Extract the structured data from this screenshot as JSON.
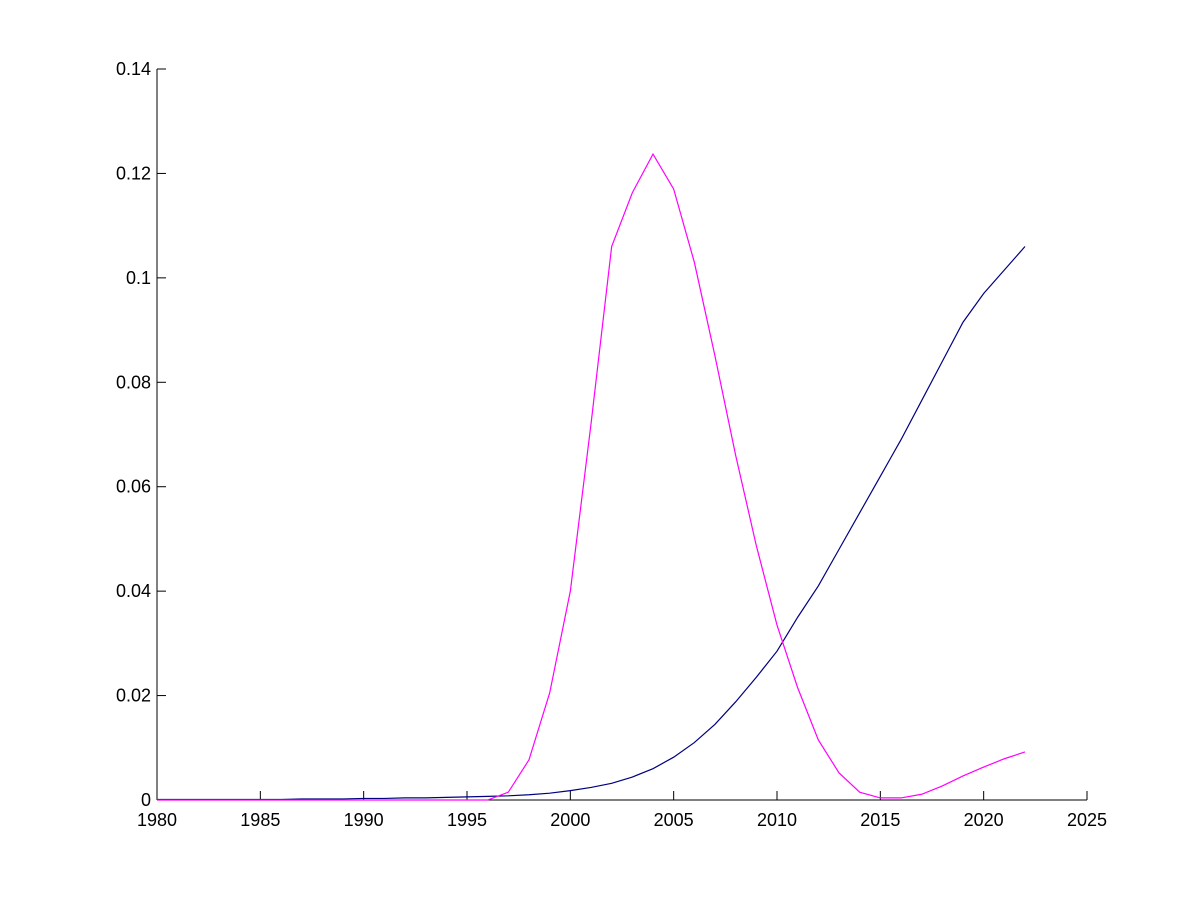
{
  "chart_data": {
    "type": "line",
    "x": [
      1980,
      1981,
      1982,
      1983,
      1984,
      1985,
      1986,
      1987,
      1988,
      1989,
      1990,
      1991,
      1992,
      1993,
      1994,
      1995,
      1996,
      1997,
      1998,
      1999,
      2000,
      2001,
      2002,
      2003,
      2004,
      2005,
      2006,
      2007,
      2008,
      2009,
      2010,
      2011,
      2012,
      2013,
      2014,
      2015,
      2016,
      2017,
      2018,
      2019,
      2020,
      2021,
      2022
    ],
    "series": [
      {
        "color": "#000080",
        "values": [
          0.0001,
          0.0001,
          0.0001,
          0.0001,
          0.0001,
          0.0001,
          0.0001,
          0.0002,
          0.0002,
          0.0002,
          0.0003,
          0.0003,
          0.0004,
          0.0004,
          0.0005,
          0.0006,
          0.0007,
          0.0008,
          0.001,
          0.0013,
          0.0018,
          0.0024,
          0.0032,
          0.0044,
          0.006,
          0.0082,
          0.011,
          0.0145,
          0.0188,
          0.0235,
          0.0285,
          0.035,
          0.041,
          0.048,
          0.055,
          0.062,
          0.069,
          0.0765,
          0.084,
          0.0915,
          0.097,
          0.1015,
          0.106
        ]
      },
      {
        "color": "#ff00ff",
        "values": [
          0,
          0,
          0,
          0,
          0,
          0,
          0,
          0,
          0,
          0,
          0,
          0,
          0,
          0,
          0,
          0,
          0,
          0.0015,
          0.0077,
          0.0205,
          0.04,
          0.072,
          0.106,
          0.1163,
          0.1237,
          0.117,
          0.103,
          0.085,
          0.066,
          0.0487,
          0.0335,
          0.0215,
          0.0115,
          0.0052,
          0.0015,
          0.0004,
          0.0004,
          0.0011,
          0.0027,
          0.0046,
          0.0063,
          0.0079,
          0.0092
        ]
      }
    ],
    "xlim": [
      1980,
      2025
    ],
    "xticks": [
      1980,
      1985,
      1990,
      1995,
      2000,
      2005,
      2010,
      2015,
      2020,
      2025
    ],
    "ylim": [
      0,
      0.14
    ],
    "yticks": [
      0,
      0.02,
      0.04,
      0.06,
      0.08,
      0.1,
      0.12,
      0.14
    ],
    "grid": false
  }
}
